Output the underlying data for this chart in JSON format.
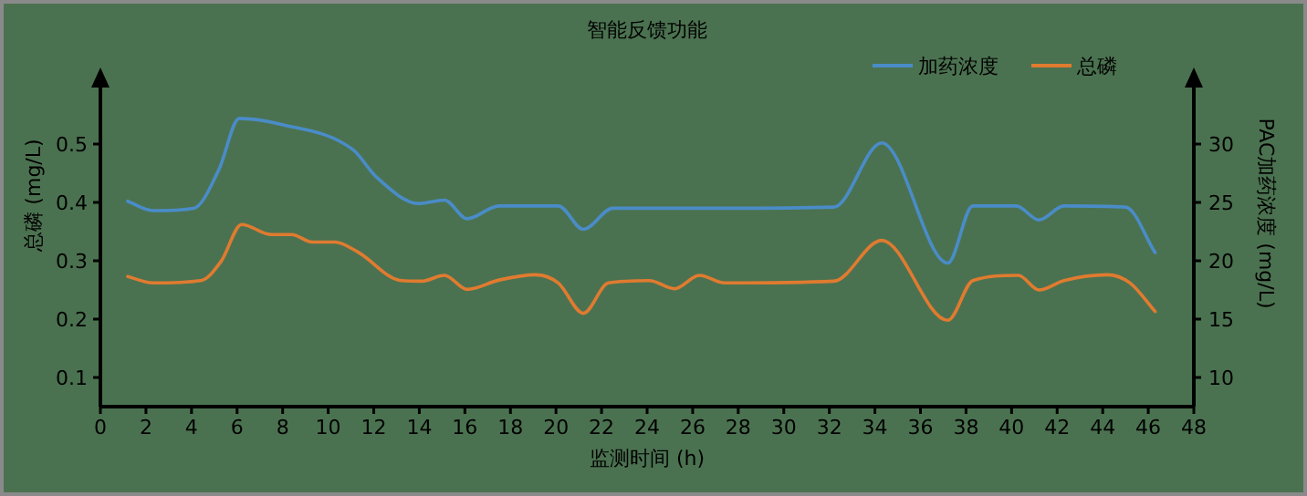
{
  "chart_data": {
    "type": "line",
    "title": "智能反馈功能",
    "xlabel": "监测时间 (h)",
    "ylabel": "总磷 (mg/L)",
    "y2label": "PAC加药浓度 (mg/L)",
    "xlim": [
      0,
      48
    ],
    "xticks": [
      0,
      2,
      4,
      6,
      8,
      10,
      12,
      14,
      16,
      18,
      20,
      22,
      24,
      26,
      28,
      30,
      32,
      34,
      36,
      38,
      40,
      42,
      44,
      46,
      48
    ],
    "ylim": [
      0.05,
      0.6
    ],
    "yticks": [
      0.1,
      0.2,
      0.3,
      0.4,
      0.5
    ],
    "y2lim": [
      7.5,
      35
    ],
    "y2ticks": [
      10,
      15,
      20,
      25,
      30
    ],
    "legend": "top right",
    "grid": false,
    "series": [
      {
        "name": "加药浓度",
        "color": "#4a8cc8",
        "axis": "y2",
        "x": [
          1.2,
          2.3,
          4.1,
          5.2,
          6.1,
          7.9,
          11.1,
          12.1,
          14.0,
          15.1,
          16.1,
          17.5,
          20.1,
          21.2,
          22.5,
          25.2,
          27.4,
          32.2,
          34.3,
          37.2,
          38.3,
          40.2,
          41.2,
          42.3,
          45.0,
          46.3
        ],
        "values": [
          25.1,
          24.3,
          24.5,
          27.8,
          32.2,
          31.7,
          29.5,
          27.2,
          24.9,
          25.2,
          23.6,
          24.7,
          24.7,
          22.7,
          24.5,
          24.5,
          24.5,
          24.6,
          30.1,
          19.8,
          24.7,
          24.7,
          23.5,
          24.7,
          24.6,
          20.7
        ]
      },
      {
        "name": "总磷",
        "color": "#e07b30",
        "x": [
          1.2,
          2.3,
          4.4,
          5.3,
          6.2,
          7.5,
          8.4,
          9.3,
          10.3,
          11.3,
          13.2,
          14.1,
          15.1,
          16.1,
          17.5,
          19.1,
          20.1,
          21.2,
          22.3,
          24.1,
          25.2,
          26.3,
          27.4,
          32.2,
          34.3,
          37.2,
          38.3,
          40.3,
          41.2,
          42.3,
          44.2,
          45.2,
          46.3
        ],
        "values": [
          0.273,
          0.262,
          0.266,
          0.299,
          0.362,
          0.345,
          0.345,
          0.332,
          0.332,
          0.315,
          0.266,
          0.265,
          0.275,
          0.251,
          0.267,
          0.276,
          0.262,
          0.21,
          0.262,
          0.266,
          0.252,
          0.275,
          0.262,
          0.265,
          0.335,
          0.198,
          0.266,
          0.275,
          0.25,
          0.266,
          0.276,
          0.262,
          0.213
        ]
      }
    ]
  }
}
